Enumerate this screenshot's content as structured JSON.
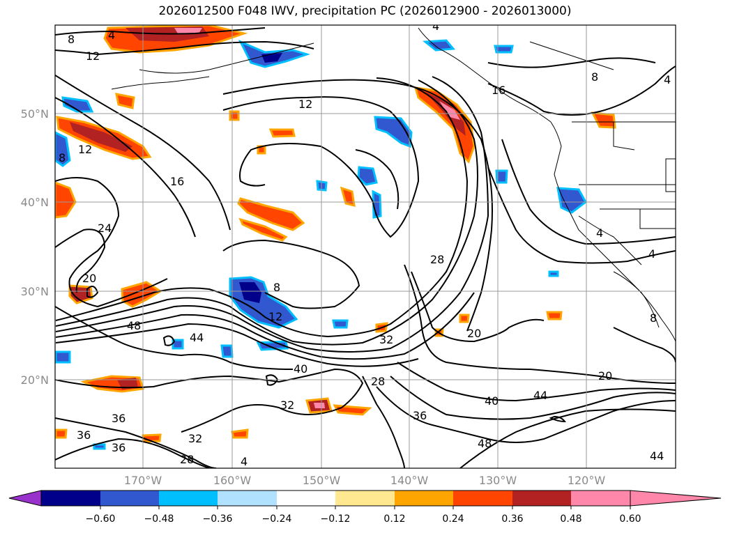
{
  "title": "2026012500 F048 IWV, precipitation PC (2026012900 - 2026013000)",
  "axes": {
    "lat_labels": [
      "50°N",
      "40°N",
      "30°N",
      "20°N"
    ],
    "lon_labels": [
      "170°W",
      "160°W",
      "150°W",
      "140°W",
      "130°W",
      "120°W"
    ]
  },
  "contour_labels": {
    "l8a": "8",
    "l4a": "4",
    "l12a": "12",
    "l12b": "12",
    "l16": "16",
    "l12c": "12",
    "l8b": "8",
    "l4b": "4",
    "l16b": "16",
    "l8c": "8",
    "l24": "24",
    "l20": "20",
    "l48a": "48",
    "l44a": "44",
    "l8d": "8",
    "l12d": "12",
    "l28": "28",
    "l32a": "32",
    "l28b": "28",
    "l40a": "40",
    "l20b": "20",
    "l4c": "4",
    "l4d": "4",
    "l4e": "4",
    "l20c": "20",
    "l40b": "40",
    "l44b": "44",
    "l36a": "36",
    "l32b": "32",
    "l36b": "36",
    "l36c": "36",
    "l36d": "36",
    "l32c": "32",
    "l28c": "28",
    "l4f": "4",
    "l48b": "48",
    "l44c": "44",
    "l8e": "8"
  },
  "colorbar": {
    "colors": [
      "#9932cc",
      "#00008b",
      "#3158cf",
      "#00bfff",
      "#b0e2ff",
      "#ffffff",
      "#ffe88f",
      "#ffa500",
      "#ff4500",
      "#b22222",
      "#ff88aa"
    ],
    "ticks": [
      "−0.60",
      "−0.48",
      "−0.36",
      "−0.24",
      "−0.12",
      "0.12",
      "0.24",
      "0.36",
      "0.48",
      "0.60"
    ]
  }
}
